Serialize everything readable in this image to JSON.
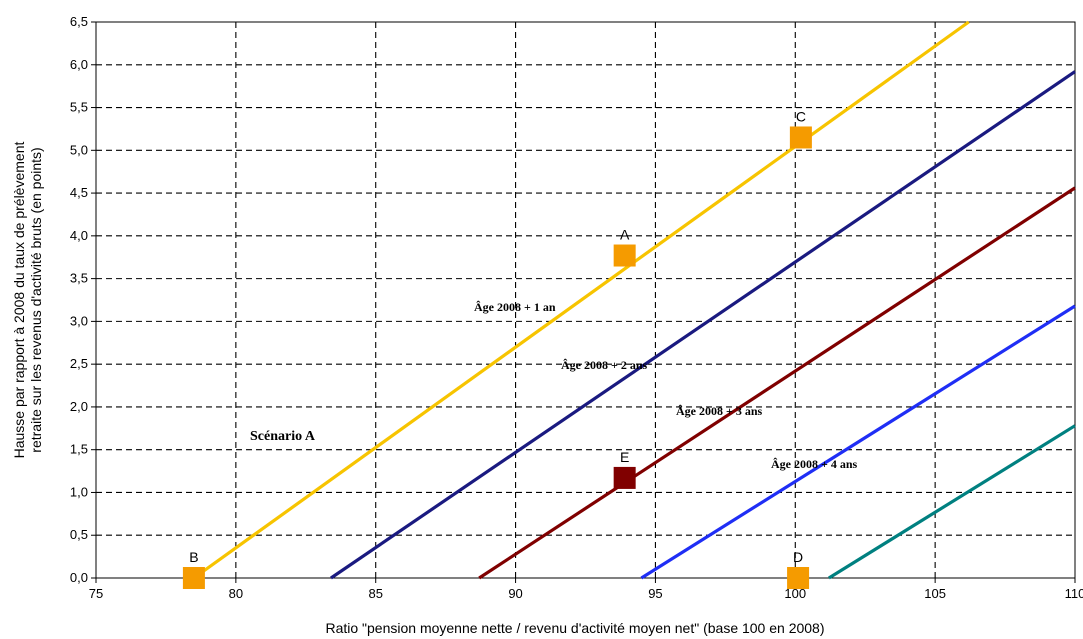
{
  "chart_data": {
    "type": "line",
    "xlabel": "Ratio \"pension moyenne nette / revenu d'activité moyen net\" (base 100 en 2008)",
    "ylabel_lines": [
      "Hausse par rapport à 2008 du taux de prélèvement",
      "retraite sur les revenus d'activité bruts (en points)"
    ],
    "xlim": [
      75,
      110
    ],
    "ylim": [
      0,
      6.5
    ],
    "x_ticks": [
      "75",
      "80",
      "85",
      "90",
      "95",
      "100",
      "105",
      "110"
    ],
    "y_ticks": [
      "0,0",
      "0,5",
      "1,0",
      "1,5",
      "2,0",
      "2,5",
      "3,0",
      "3,5",
      "4,0",
      "4,5",
      "5,0",
      "5,5",
      "6,0",
      "6,5"
    ],
    "grid": true,
    "series": [
      {
        "name": "Scénario A",
        "color": "#f7c400",
        "label_color": "#f59b00",
        "points": [
          [
            78.5,
            0
          ],
          [
            106.2,
            6.5
          ]
        ]
      },
      {
        "name": "Âge 2008 + 1 an",
        "color": "#1a1a80",
        "label_color": "#000000",
        "points": [
          [
            83.4,
            0
          ],
          [
            110,
            5.92
          ]
        ]
      },
      {
        "name": "Âge 2008 + 2 ans",
        "color": "#800000",
        "label_color": "#000000",
        "points": [
          [
            88.7,
            0
          ],
          [
            110,
            4.56
          ]
        ]
      },
      {
        "name": "Âge 2008 + 3 ans",
        "color": "#1f2ef5",
        "label_color": "#000000",
        "points": [
          [
            94.5,
            0
          ],
          [
            110,
            3.18
          ]
        ]
      },
      {
        "name": "Âge 2008 + 4 ans",
        "color": "#008080",
        "label_color": "#000000",
        "points": [
          [
            101.2,
            0
          ],
          [
            110,
            1.78
          ]
        ]
      }
    ],
    "points": [
      {
        "label": "A",
        "x": 93.9,
        "y": 3.77,
        "color": "#f59b00"
      },
      {
        "label": "B",
        "x": 78.5,
        "y": 0.0,
        "color": "#f59b00"
      },
      {
        "label": "C",
        "x": 100.2,
        "y": 5.15,
        "color": "#f59b00"
      },
      {
        "label": "D",
        "x": 100.1,
        "y": 0.0,
        "color": "#f59b00"
      },
      {
        "label": "E",
        "x": 93.9,
        "y": 1.17,
        "color": "#800000"
      }
    ]
  }
}
